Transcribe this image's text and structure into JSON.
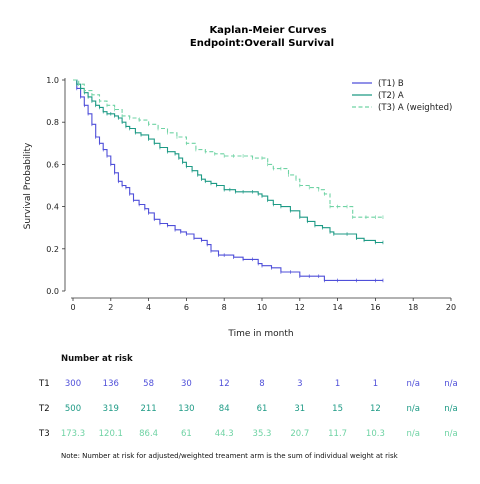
{
  "chart_data": {
    "type": "line",
    "subtype": "kaplan-meier step",
    "title": "Kaplan-Meier Curves",
    "subtitle": "Endpoint:Overall Survival",
    "xlabel": "Time in month",
    "ylabel": "Survival Probability",
    "xlim": [
      0,
      20
    ],
    "ylim": [
      0,
      1.0
    ],
    "x_ticks": [
      "0",
      "2",
      "4",
      "6",
      "8",
      "10",
      "12",
      "14",
      "16",
      "18",
      "20"
    ],
    "y_ticks": [
      "0.0",
      "0.2",
      "0.4",
      "0.6",
      "0.8",
      "1.0"
    ],
    "grid": false,
    "legend_position": "top-right",
    "series": [
      {
        "name": "(T1) B",
        "color": "#4f4fd9",
        "line_style": "solid",
        "points": [
          [
            0,
            1.0
          ],
          [
            0.2,
            0.96
          ],
          [
            0.4,
            0.92
          ],
          [
            0.6,
            0.88
          ],
          [
            0.8,
            0.84
          ],
          [
            1.0,
            0.79
          ],
          [
            1.2,
            0.73
          ],
          [
            1.4,
            0.7
          ],
          [
            1.6,
            0.67
          ],
          [
            1.8,
            0.64
          ],
          [
            2.0,
            0.6
          ],
          [
            2.2,
            0.56
          ],
          [
            2.4,
            0.52
          ],
          [
            2.6,
            0.5
          ],
          [
            2.8,
            0.49
          ],
          [
            3.0,
            0.46
          ],
          [
            3.2,
            0.43
          ],
          [
            3.5,
            0.41
          ],
          [
            3.8,
            0.39
          ],
          [
            4.0,
            0.37
          ],
          [
            4.3,
            0.34
          ],
          [
            4.6,
            0.32
          ],
          [
            5.0,
            0.31
          ],
          [
            5.4,
            0.29
          ],
          [
            5.7,
            0.28
          ],
          [
            6.0,
            0.27
          ],
          [
            6.4,
            0.25
          ],
          [
            6.8,
            0.24
          ],
          [
            7.1,
            0.22
          ],
          [
            7.3,
            0.19
          ],
          [
            7.7,
            0.17
          ],
          [
            8.0,
            0.17
          ],
          [
            8.5,
            0.16
          ],
          [
            9.0,
            0.15
          ],
          [
            9.5,
            0.15
          ],
          [
            9.8,
            0.13
          ],
          [
            10.0,
            0.12
          ],
          [
            10.5,
            0.11
          ],
          [
            11.0,
            0.09
          ],
          [
            11.5,
            0.09
          ],
          [
            12.0,
            0.07
          ],
          [
            12.5,
            0.07
          ],
          [
            13.0,
            0.07
          ],
          [
            13.3,
            0.05
          ],
          [
            14.0,
            0.05
          ],
          [
            15.0,
            0.05
          ],
          [
            16.0,
            0.05
          ],
          [
            16.4,
            0.05
          ]
        ]
      },
      {
        "name": "(T2) A",
        "color": "#1d9a85",
        "line_style": "solid",
        "points": [
          [
            0,
            1.0
          ],
          [
            0.2,
            0.98
          ],
          [
            0.4,
            0.96
          ],
          [
            0.6,
            0.94
          ],
          [
            0.8,
            0.92
          ],
          [
            1.0,
            0.9
          ],
          [
            1.2,
            0.88
          ],
          [
            1.4,
            0.87
          ],
          [
            1.6,
            0.85
          ],
          [
            1.8,
            0.84
          ],
          [
            2.0,
            0.84
          ],
          [
            2.2,
            0.83
          ],
          [
            2.4,
            0.82
          ],
          [
            2.6,
            0.8
          ],
          [
            2.8,
            0.78
          ],
          [
            3.0,
            0.77
          ],
          [
            3.3,
            0.75
          ],
          [
            3.6,
            0.74
          ],
          [
            4.0,
            0.72
          ],
          [
            4.3,
            0.7
          ],
          [
            4.6,
            0.68
          ],
          [
            5.0,
            0.66
          ],
          [
            5.4,
            0.65
          ],
          [
            5.6,
            0.63
          ],
          [
            5.8,
            0.61
          ],
          [
            6.0,
            0.59
          ],
          [
            6.3,
            0.57
          ],
          [
            6.6,
            0.55
          ],
          [
            6.8,
            0.53
          ],
          [
            7.0,
            0.52
          ],
          [
            7.3,
            0.51
          ],
          [
            7.6,
            0.5
          ],
          [
            8.0,
            0.48
          ],
          [
            8.3,
            0.48
          ],
          [
            8.6,
            0.47
          ],
          [
            9.0,
            0.47
          ],
          [
            9.5,
            0.47
          ],
          [
            9.8,
            0.46
          ],
          [
            10.0,
            0.45
          ],
          [
            10.3,
            0.43
          ],
          [
            10.6,
            0.41
          ],
          [
            11.0,
            0.4
          ],
          [
            11.5,
            0.38
          ],
          [
            12.0,
            0.35
          ],
          [
            12.4,
            0.33
          ],
          [
            12.8,
            0.31
          ],
          [
            13.2,
            0.3
          ],
          [
            13.6,
            0.28
          ],
          [
            13.8,
            0.27
          ],
          [
            14.5,
            0.27
          ],
          [
            15.0,
            0.25
          ],
          [
            15.4,
            0.24
          ],
          [
            16.0,
            0.23
          ],
          [
            16.4,
            0.23
          ]
        ]
      },
      {
        "name": "(T3) A (weighted)",
        "color": "#6fd3a4",
        "line_style": "dashed",
        "points": [
          [
            0,
            1.0
          ],
          [
            0.3,
            0.98
          ],
          [
            0.6,
            0.95
          ],
          [
            1.0,
            0.93
          ],
          [
            1.4,
            0.9
          ],
          [
            1.8,
            0.88
          ],
          [
            2.2,
            0.86
          ],
          [
            2.6,
            0.83
          ],
          [
            3.0,
            0.82
          ],
          [
            3.5,
            0.81
          ],
          [
            4.0,
            0.79
          ],
          [
            4.5,
            0.77
          ],
          [
            5.0,
            0.75
          ],
          [
            5.5,
            0.73
          ],
          [
            6.0,
            0.7
          ],
          [
            6.5,
            0.67
          ],
          [
            7.0,
            0.66
          ],
          [
            7.5,
            0.65
          ],
          [
            8.0,
            0.64
          ],
          [
            8.5,
            0.64
          ],
          [
            9.0,
            0.64
          ],
          [
            9.5,
            0.63
          ],
          [
            10.0,
            0.63
          ],
          [
            10.3,
            0.6
          ],
          [
            10.6,
            0.58
          ],
          [
            11.0,
            0.58
          ],
          [
            11.4,
            0.55
          ],
          [
            11.8,
            0.53
          ],
          [
            12.0,
            0.5
          ],
          [
            12.5,
            0.49
          ],
          [
            13.0,
            0.48
          ],
          [
            13.3,
            0.46
          ],
          [
            13.6,
            0.4
          ],
          [
            14.0,
            0.4
          ],
          [
            14.5,
            0.4
          ],
          [
            14.8,
            0.35
          ],
          [
            15.5,
            0.35
          ],
          [
            16.0,
            0.35
          ],
          [
            16.4,
            0.35
          ]
        ]
      }
    ]
  },
  "risk_table": {
    "title": "Number at risk",
    "rows": [
      {
        "label": "T1",
        "color": "#4f4fd9",
        "values": [
          "300",
          "136",
          "58",
          "30",
          "12",
          "8",
          "3",
          "1",
          "1",
          "n/a",
          "n/a"
        ]
      },
      {
        "label": "T2",
        "color": "#1d9a85",
        "values": [
          "500",
          "319",
          "211",
          "130",
          "84",
          "61",
          "31",
          "15",
          "12",
          "n/a",
          "n/a"
        ]
      },
      {
        "label": "T3",
        "color": "#6fd3a4",
        "values": [
          "173.3",
          "120.1",
          "86.4",
          "61",
          "44.3",
          "35.3",
          "20.7",
          "11.7",
          "10.3",
          "n/a",
          "n/a"
        ]
      }
    ],
    "note": "Note: Number at risk for adjusted/weighted treament arm is the sum of individual weight at risk"
  }
}
